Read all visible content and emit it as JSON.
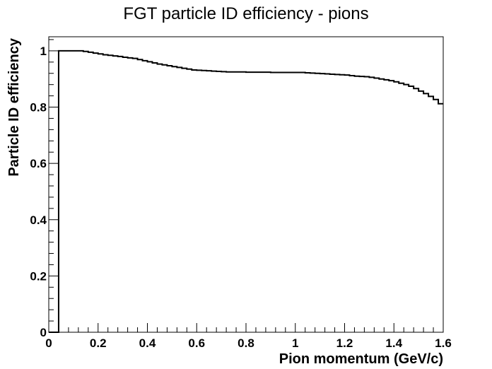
{
  "chart_data": {
    "type": "line",
    "style": "step-histogram",
    "title": "FGT particle ID efficiency - pions",
    "xlabel": "Pion momentum (GeV/c)",
    "ylabel": "Particle ID efficiency",
    "xlim": [
      0,
      1.6
    ],
    "ylim": [
      0,
      1.05
    ],
    "xticks": [
      "0",
      "0.2",
      "0.4",
      "0.6",
      "0.8",
      "1",
      "1.2",
      "1.4",
      "1.6"
    ],
    "yticks": [
      "0",
      "0.2",
      "0.4",
      "0.6",
      "0.8",
      "1"
    ],
    "grid": false,
    "legend": "none",
    "line_color": "#000000",
    "bin_width": 0.02,
    "x": [
      0.0,
      0.02,
      0.04,
      0.06,
      0.08,
      0.1,
      0.12,
      0.14,
      0.16,
      0.18,
      0.2,
      0.22,
      0.24,
      0.26,
      0.28,
      0.3,
      0.32,
      0.34,
      0.36,
      0.38,
      0.4,
      0.42,
      0.44,
      0.46,
      0.48,
      0.5,
      0.52,
      0.54,
      0.56,
      0.58,
      0.6,
      0.62,
      0.64,
      0.66,
      0.68,
      0.7,
      0.72,
      0.74,
      0.76,
      0.78,
      0.8,
      0.82,
      0.84,
      0.86,
      0.88,
      0.9,
      0.92,
      0.94,
      0.96,
      0.98,
      1.0,
      1.02,
      1.04,
      1.06,
      1.08,
      1.1,
      1.12,
      1.14,
      1.16,
      1.18,
      1.2,
      1.22,
      1.24,
      1.26,
      1.28,
      1.3,
      1.32,
      1.34,
      1.36,
      1.38,
      1.4,
      1.42,
      1.44,
      1.46,
      1.48,
      1.5,
      1.52,
      1.54,
      1.56,
      1.58
    ],
    "y": [
      0,
      0,
      1.0,
      1.0,
      1.0,
      1.0,
      1.0,
      0.998,
      0.995,
      0.992,
      0.989,
      0.986,
      0.984,
      0.982,
      0.98,
      0.977,
      0.975,
      0.973,
      0.969,
      0.965,
      0.961,
      0.957,
      0.953,
      0.95,
      0.947,
      0.944,
      0.941,
      0.938,
      0.935,
      0.932,
      0.931,
      0.93,
      0.929,
      0.928,
      0.927,
      0.926,
      0.925,
      0.925,
      0.925,
      0.925,
      0.924,
      0.924,
      0.924,
      0.924,
      0.924,
      0.923,
      0.923,
      0.923,
      0.923,
      0.923,
      0.923,
      0.923,
      0.922,
      0.921,
      0.92,
      0.919,
      0.918,
      0.917,
      0.916,
      0.915,
      0.914,
      0.912,
      0.91,
      0.909,
      0.908,
      0.906,
      0.903,
      0.9,
      0.897,
      0.894,
      0.89,
      0.885,
      0.88,
      0.874,
      0.866,
      0.857,
      0.848,
      0.838,
      0.827,
      0.812
    ]
  }
}
